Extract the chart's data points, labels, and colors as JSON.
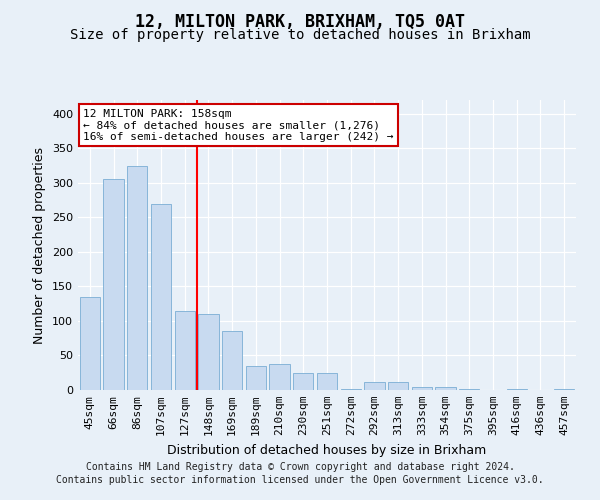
{
  "title": "12, MILTON PARK, BRIXHAM, TQ5 0AT",
  "subtitle": "Size of property relative to detached houses in Brixham",
  "xlabel": "Distribution of detached houses by size in Brixham",
  "ylabel": "Number of detached properties",
  "categories": [
    "45sqm",
    "66sqm",
    "86sqm",
    "107sqm",
    "127sqm",
    "148sqm",
    "169sqm",
    "189sqm",
    "210sqm",
    "230sqm",
    "251sqm",
    "272sqm",
    "292sqm",
    "313sqm",
    "333sqm",
    "354sqm",
    "375sqm",
    "395sqm",
    "416sqm",
    "436sqm",
    "457sqm"
  ],
  "values": [
    135,
    305,
    325,
    270,
    115,
    110,
    85,
    35,
    37,
    25,
    25,
    2,
    12,
    12,
    5,
    5,
    2,
    0,
    2,
    0,
    2
  ],
  "bar_color": "#c8daf0",
  "bar_edge_color": "#7aaed4",
  "red_line_x": 5,
  "property_label": "12 MILTON PARK: 158sqm",
  "annotation_line1": "← 84% of detached houses are smaller (1,276)",
  "annotation_line2": "16% of semi-detached houses are larger (242) →",
  "annotation_box_facecolor": "#ffffff",
  "annotation_box_edgecolor": "#cc0000",
  "ylim": [
    0,
    420
  ],
  "yticks": [
    0,
    50,
    100,
    150,
    200,
    250,
    300,
    350,
    400
  ],
  "background_color": "#e8f0f8",
  "grid_color": "#ffffff",
  "title_fontsize": 12,
  "subtitle_fontsize": 10,
  "tick_fontsize": 8,
  "ylabel_fontsize": 9,
  "xlabel_fontsize": 9,
  "annotation_fontsize": 8,
  "footer_fontsize": 7,
  "footer_line1": "Contains HM Land Registry data © Crown copyright and database right 2024.",
  "footer_line2": "Contains public sector information licensed under the Open Government Licence v3.0."
}
